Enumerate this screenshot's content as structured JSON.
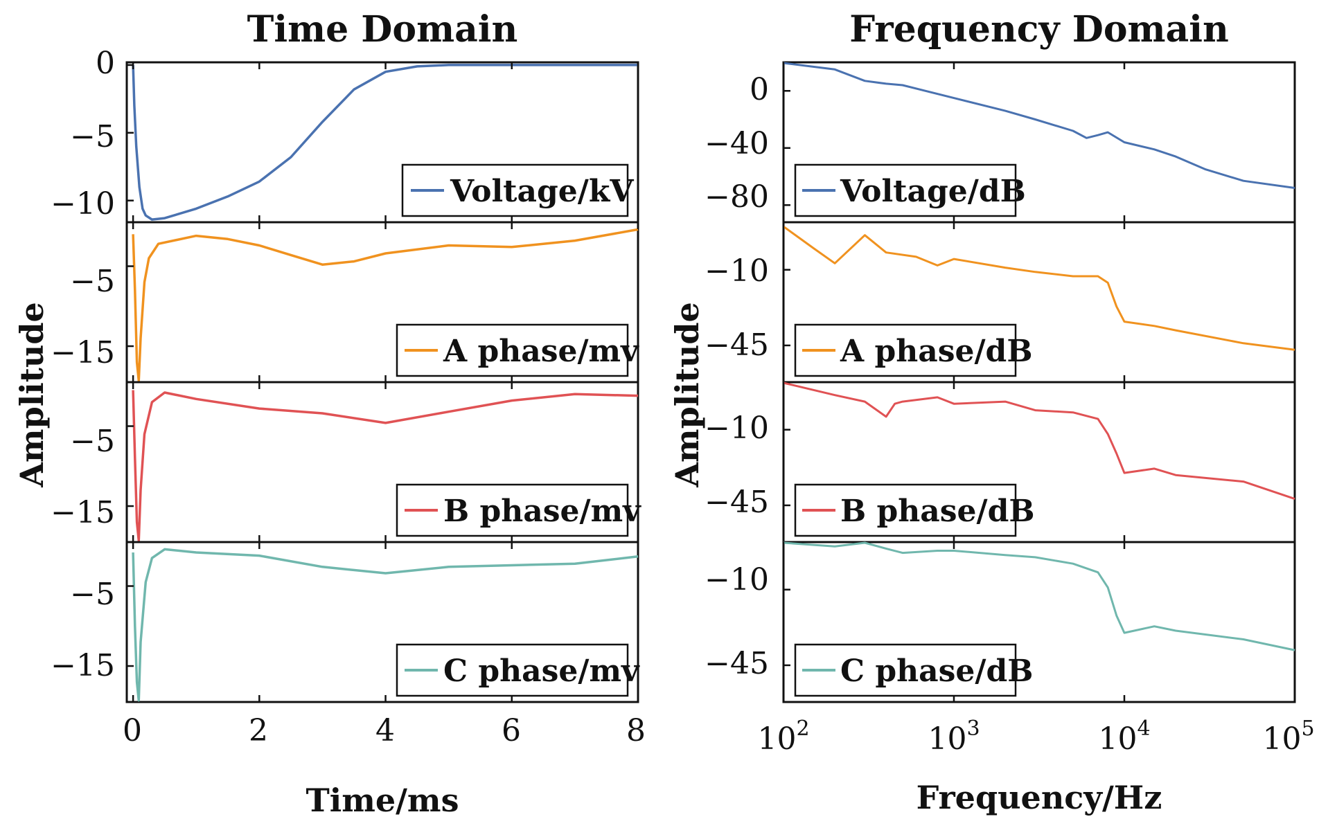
{
  "chart_data": [
    {
      "type": "line",
      "title": "Time Domain",
      "xlabel": "Time/ms",
      "ylabel": "Amplitude",
      "xlim": [
        -0.1,
        8
      ],
      "xticks": [
        0,
        2,
        4,
        6,
        8
      ],
      "xtick_labels": [
        "0",
        "2",
        "4",
        "6",
        "8"
      ],
      "panels": [
        {
          "series": "Voltage/kV",
          "color": "#4a72b0",
          "ylim": [
            -11.6,
            0.2
          ],
          "yticks": [
            0,
            -5,
            -10
          ],
          "ytick_labels": [
            "0",
            "−5",
            "−10"
          ],
          "points": [
            [
              0,
              0
            ],
            [
              0.02,
              -3
            ],
            [
              0.05,
              -6
            ],
            [
              0.1,
              -9
            ],
            [
              0.15,
              -10.6
            ],
            [
              0.2,
              -11.1
            ],
            [
              0.3,
              -11.4
            ],
            [
              0.5,
              -11.3
            ],
            [
              1,
              -10.6
            ],
            [
              1.5,
              -9.7
            ],
            [
              2,
              -8.6
            ],
            [
              2.5,
              -6.8
            ],
            [
              3,
              -4.2
            ],
            [
              3.5,
              -1.8
            ],
            [
              4,
              -0.5
            ],
            [
              4.5,
              -0.1
            ],
            [
              5,
              0
            ],
            [
              8,
              0
            ]
          ]
        },
        {
          "series": "A phase/mv",
          "color": "#f0921f",
          "ylim": [
            -19.5,
            0.5
          ],
          "yticks": [
            -5,
            -15
          ],
          "ytick_labels": [
            "−5",
            "−15"
          ],
          "points": [
            [
              0,
              -1
            ],
            [
              0.03,
              -8
            ],
            [
              0.06,
              -17
            ],
            [
              0.09,
              -19.3
            ],
            [
              0.12,
              -14
            ],
            [
              0.18,
              -7
            ],
            [
              0.25,
              -4
            ],
            [
              0.4,
              -2.2
            ],
            [
              1,
              -1.2
            ],
            [
              1.5,
              -1.6
            ],
            [
              2,
              -2.4
            ],
            [
              2.5,
              -3.6
            ],
            [
              3,
              -4.8
            ],
            [
              3.5,
              -4.4
            ],
            [
              4,
              -3.4
            ],
            [
              5,
              -2.4
            ],
            [
              6,
              -2.6
            ],
            [
              7,
              -1.8
            ],
            [
              8,
              -0.4
            ]
          ]
        },
        {
          "series": "B phase/mv",
          "color": "#e05254",
          "ylim": [
            -19.5,
            0.5
          ],
          "yticks": [
            -5,
            -15
          ],
          "ytick_labels": [
            "−5",
            "−15"
          ],
          "points": [
            [
              0,
              -0.5
            ],
            [
              0.03,
              -9
            ],
            [
              0.06,
              -17
            ],
            [
              0.09,
              -19.3
            ],
            [
              0.12,
              -13
            ],
            [
              0.18,
              -6
            ],
            [
              0.3,
              -2
            ],
            [
              0.5,
              -0.8
            ],
            [
              1,
              -1.6
            ],
            [
              2,
              -2.8
            ],
            [
              3,
              -3.4
            ],
            [
              4,
              -4.6
            ],
            [
              5,
              -3.2
            ],
            [
              6,
              -1.8
            ],
            [
              7,
              -1
            ],
            [
              8,
              -1.2
            ]
          ]
        },
        {
          "series": "C phase/mv",
          "color": "#70b7ad",
          "ylim": [
            -19.5,
            0.5
          ],
          "yticks": [
            -5,
            -15
          ],
          "ytick_labels": [
            "−5",
            "−15"
          ],
          "points": [
            [
              0,
              -0.8
            ],
            [
              0.03,
              -10
            ],
            [
              0.06,
              -17
            ],
            [
              0.09,
              -19.3
            ],
            [
              0.12,
              -12
            ],
            [
              0.2,
              -4.5
            ],
            [
              0.3,
              -1.5
            ],
            [
              0.5,
              -0.4
            ],
            [
              1,
              -0.8
            ],
            [
              2,
              -1.2
            ],
            [
              3,
              -2.6
            ],
            [
              4,
              -3.4
            ],
            [
              5,
              -2.6
            ],
            [
              6,
              -2.4
            ],
            [
              7,
              -2.2
            ],
            [
              8,
              -1.3
            ]
          ]
        }
      ]
    },
    {
      "type": "line",
      "title": "Frequency Domain",
      "xlabel": "Frequency/Hz",
      "ylabel": "Amplitude",
      "xscale": "log",
      "xlim": [
        100,
        100000
      ],
      "xticks": [
        100,
        1000,
        10000,
        100000
      ],
      "xtick_base": "10",
      "xtick_exponents": [
        "2",
        "3",
        "4",
        "5"
      ],
      "panels": [
        {
          "series": "Voltage/dB",
          "color": "#4a72b0",
          "ylim": [
            -92,
            20
          ],
          "yticks": [
            0,
            -40,
            -80
          ],
          "ytick_labels": [
            "0",
            "−40",
            "−80"
          ],
          "points": [
            [
              100,
              20
            ],
            [
              200,
              15
            ],
            [
              300,
              7
            ],
            [
              400,
              5
            ],
            [
              500,
              4
            ],
            [
              1000,
              -5
            ],
            [
              2000,
              -14
            ],
            [
              3000,
              -20
            ],
            [
              5000,
              -28
            ],
            [
              6000,
              -33
            ],
            [
              7000,
              -31
            ],
            [
              8000,
              -29
            ],
            [
              10000,
              -36
            ],
            [
              15000,
              -41
            ],
            [
              20000,
              -46
            ],
            [
              30000,
              -55
            ],
            [
              50000,
              -63
            ],
            [
              100000,
              -68
            ]
          ]
        },
        {
          "series": "A phase/dB",
          "color": "#f0921f",
          "ylim": [
            -62,
            12
          ],
          "yticks": [
            -10,
            -45
          ],
          "ytick_labels": [
            "−10",
            "−45"
          ],
          "points": [
            [
              100,
              10
            ],
            [
              150,
              0
            ],
            [
              200,
              -7
            ],
            [
              300,
              6
            ],
            [
              400,
              -2
            ],
            [
              600,
              -4
            ],
            [
              800,
              -8
            ],
            [
              1000,
              -5
            ],
            [
              2000,
              -9
            ],
            [
              3000,
              -11
            ],
            [
              5000,
              -13
            ],
            [
              7000,
              -13
            ],
            [
              8000,
              -16
            ],
            [
              9000,
              -27
            ],
            [
              10000,
              -34
            ],
            [
              15000,
              -36
            ],
            [
              20000,
              -38
            ],
            [
              50000,
              -44
            ],
            [
              100000,
              -47
            ]
          ]
        },
        {
          "series": "B phase/dB",
          "color": "#e05254",
          "ylim": [
            -62,
            12
          ],
          "yticks": [
            -10,
            -45
          ],
          "ytick_labels": [
            "−10",
            "−45"
          ],
          "points": [
            [
              100,
              12
            ],
            [
              200,
              6
            ],
            [
              300,
              3
            ],
            [
              400,
              -4
            ],
            [
              450,
              2
            ],
            [
              500,
              3
            ],
            [
              800,
              5
            ],
            [
              1000,
              2
            ],
            [
              2000,
              3
            ],
            [
              3000,
              -1
            ],
            [
              5000,
              -2
            ],
            [
              7000,
              -5
            ],
            [
              8000,
              -12
            ],
            [
              9000,
              -21
            ],
            [
              10000,
              -30
            ],
            [
              15000,
              -28
            ],
            [
              20000,
              -31
            ],
            [
              50000,
              -34
            ],
            [
              100000,
              -42
            ]
          ]
        },
        {
          "series": "C phase/dB",
          "color": "#70b7ad",
          "ylim": [
            -62,
            12
          ],
          "yticks": [
            -10,
            -45
          ],
          "ytick_labels": [
            "−10",
            "−45"
          ],
          "points": [
            [
              100,
              12
            ],
            [
              200,
              10
            ],
            [
              300,
              12
            ],
            [
              400,
              9
            ],
            [
              500,
              7
            ],
            [
              800,
              8
            ],
            [
              1000,
              8
            ],
            [
              2000,
              6
            ],
            [
              3000,
              5
            ],
            [
              5000,
              2
            ],
            [
              7000,
              -2
            ],
            [
              8000,
              -9
            ],
            [
              9000,
              -22
            ],
            [
              10000,
              -30
            ],
            [
              15000,
              -27
            ],
            [
              20000,
              -29
            ],
            [
              50000,
              -33
            ],
            [
              100000,
              -38
            ]
          ]
        }
      ]
    }
  ]
}
